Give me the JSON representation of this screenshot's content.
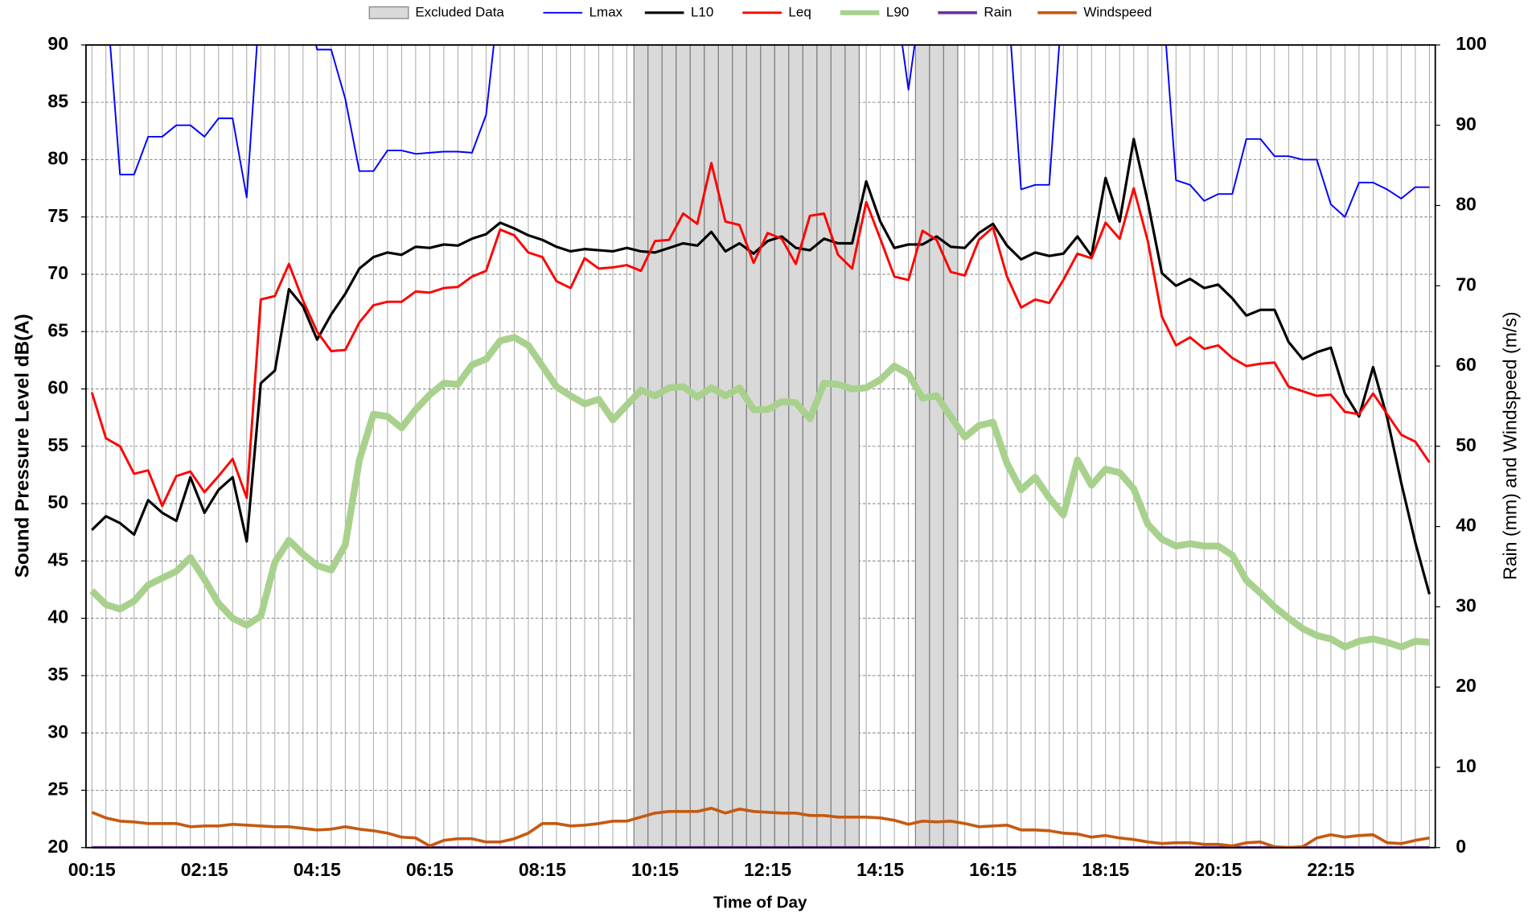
{
  "chart_data": {
    "type": "line",
    "x_label": "Time of Day",
    "y_label": "Sound Pressure Level dB(A)",
    "y2_label": "Rain (mm) and Windspeed (m/s)",
    "categories": [
      "00:15",
      null,
      null,
      null,
      null,
      null,
      null,
      null,
      "02:15",
      null,
      null,
      null,
      null,
      null,
      null,
      null,
      "04:15",
      null,
      null,
      null,
      null,
      null,
      null,
      null,
      "06:15",
      null,
      null,
      null,
      null,
      null,
      null,
      null,
      "08:15",
      null,
      null,
      null,
      null,
      null,
      null,
      null,
      "10:15",
      null,
      null,
      null,
      null,
      null,
      null,
      null,
      "12:15",
      null,
      null,
      null,
      null,
      null,
      null,
      null,
      "14:15",
      null,
      null,
      null,
      null,
      null,
      null,
      null,
      "16:15",
      null,
      null,
      null,
      null,
      null,
      null,
      null,
      "18:15",
      null,
      null,
      null,
      null,
      null,
      null,
      null,
      "20:15",
      null,
      null,
      null,
      null,
      null,
      null,
      null,
      "22:15",
      null,
      null,
      null,
      null,
      null,
      null,
      null
    ],
    "ylim": [
      20,
      90
    ],
    "yticks": [
      20,
      25,
      30,
      35,
      40,
      45,
      50,
      55,
      60,
      65,
      70,
      75,
      80,
      85,
      90
    ],
    "y2lim": [
      0,
      100
    ],
    "y2ticks": [
      0,
      10,
      20,
      30,
      40,
      50,
      60,
      70,
      80,
      90,
      100
    ],
    "grid": true,
    "legend": "top",
    "series": [
      {
        "name": "Excluded Data",
        "type": "bar",
        "color": "#d9d9d9",
        "values": [
          null,
          null,
          null,
          null,
          null,
          null,
          null,
          null,
          null,
          null,
          null,
          null,
          null,
          null,
          null,
          null,
          null,
          null,
          null,
          null,
          null,
          null,
          null,
          null,
          null,
          null,
          null,
          null,
          null,
          null,
          null,
          null,
          null,
          null,
          null,
          null,
          null,
          null,
          null,
          90,
          90,
          90,
          90,
          90,
          90,
          90,
          90,
          90,
          90,
          90,
          90,
          90,
          90,
          90,
          90,
          null,
          null,
          null,
          null,
          90,
          90,
          90,
          null,
          null,
          null,
          null,
          null,
          null,
          null,
          null,
          null,
          null,
          null,
          null,
          null,
          null,
          null,
          null,
          null,
          null,
          null,
          null,
          null,
          null,
          null,
          null,
          null,
          null,
          null,
          null,
          null,
          null,
          null,
          null,
          null,
          null
        ]
      },
      {
        "name": "Lmax",
        "type": "line",
        "color": "#0000ff",
        "values": [
          95,
          95,
          78.7,
          78.7,
          82,
          82,
          83,
          83,
          82,
          83.6,
          83.6,
          76.7,
          95,
          95,
          95,
          95,
          89.6,
          89.6,
          85.3,
          79,
          79,
          80.8,
          80.8,
          80.5,
          80.6,
          80.7,
          80.7,
          80.6,
          83.9,
          95,
          95,
          95,
          95,
          95,
          95,
          95,
          95,
          95,
          95,
          95,
          95,
          95,
          95,
          95,
          95,
          95,
          95,
          95,
          95,
          95,
          95,
          95,
          95,
          95,
          95,
          95,
          95,
          95,
          86.1,
          95,
          95,
          95,
          95,
          95,
          95,
          95,
          77.4,
          77.8,
          77.8,
          95,
          95,
          95,
          95,
          95,
          95,
          95,
          95,
          78.2,
          77.8,
          76.4,
          77,
          77,
          81.8,
          81.8,
          80.3,
          80.3,
          80,
          80,
          76.1,
          75,
          78,
          78,
          77.4,
          76.6,
          77.6,
          77.6
        ]
      },
      {
        "name": "L10",
        "type": "line",
        "color": "#000000",
        "values": [
          47.7,
          48.9,
          48.3,
          47.3,
          50.3,
          49.2,
          48.5,
          52.3,
          49.2,
          51.2,
          52.3,
          46.7,
          60.5,
          61.6,
          68.7,
          67.2,
          64.3,
          66.5,
          68.3,
          70.5,
          71.5,
          71.9,
          71.7,
          72.4,
          72.3,
          72.6,
          72.5,
          73.1,
          73.5,
          74.5,
          74.0,
          73.4,
          73.0,
          72.4,
          72.0,
          72.2,
          72.1,
          72.0,
          72.3,
          72.0,
          71.9,
          72.3,
          72.7,
          72.5,
          73.7,
          72.0,
          72.7,
          71.8,
          72.9,
          73.3,
          72.3,
          72.1,
          73.1,
          72.7,
          72.7,
          78.1,
          74.6,
          72.3,
          72.6,
          72.6,
          73.3,
          72.4,
          72.3,
          73.6,
          74.4,
          72.5,
          71.3,
          71.9,
          71.6,
          71.8,
          73.3,
          71.6,
          78.4,
          74.6,
          81.8,
          76.3,
          70.1,
          69.0,
          69.6,
          68.8,
          69.1,
          67.9,
          66.4,
          66.9,
          66.9,
          64.1,
          62.6,
          63.2,
          63.6,
          59.6,
          57.6,
          61.9,
          57.5,
          51.8,
          46.6,
          42.1
        ]
      },
      {
        "name": "Leq",
        "type": "line",
        "color": "#ff0000",
        "values": [
          59.7,
          55.7,
          55.0,
          52.6,
          52.9,
          49.8,
          52.4,
          52.8,
          51.0,
          52.4,
          53.9,
          50.5,
          67.8,
          68.1,
          70.9,
          67.7,
          65.0,
          63.3,
          63.4,
          65.8,
          67.3,
          67.6,
          67.6,
          68.5,
          68.4,
          68.8,
          68.9,
          69.8,
          70.3,
          73.9,
          73.4,
          71.9,
          71.5,
          69.4,
          68.8,
          71.4,
          70.5,
          70.6,
          70.8,
          70.3,
          72.9,
          73.0,
          75.3,
          74.4,
          79.7,
          74.6,
          74.3,
          71.0,
          73.6,
          73.1,
          70.9,
          75.1,
          75.3,
          71.7,
          70.5,
          76.3,
          73.1,
          69.8,
          69.5,
          73.8,
          73.0,
          70.2,
          69.9,
          73.0,
          74.1,
          69.8,
          67.1,
          67.8,
          67.5,
          69.5,
          71.8,
          71.4,
          74.5,
          73.1,
          77.5,
          72.9,
          66.3,
          63.8,
          64.5,
          63.5,
          63.8,
          62.7,
          62.0,
          62.2,
          62.3,
          60.2,
          59.8,
          59.4,
          59.5,
          58.0,
          57.8,
          59.6,
          57.8,
          56.0,
          55.4,
          53.6
        ]
      },
      {
        "name": "L90",
        "type": "line",
        "color": "#a9d18e",
        "values": [
          42.4,
          41.2,
          40.8,
          41.5,
          42.9,
          43.5,
          44.1,
          45.3,
          43.4,
          41.3,
          40.0,
          39.4,
          40.2,
          44.9,
          46.8,
          45.6,
          44.6,
          44.2,
          46.4,
          53.8,
          57.8,
          57.6,
          56.6,
          58.2,
          59.5,
          60.5,
          60.4,
          62.1,
          62.6,
          64.2,
          64.5,
          63.8,
          62.0,
          60.2,
          59.4,
          58.7,
          59.1,
          57.3,
          58.6,
          59.9,
          59.4,
          60.1,
          60.2,
          59.3,
          60.1,
          59.4,
          60.1,
          58.2,
          58.2,
          58.9,
          58.8,
          57.4,
          60.5,
          60.4,
          60.0,
          60.1,
          60.8,
          62.0,
          61.3,
          59.2,
          59.4,
          57.6,
          55.8,
          56.8,
          57.1,
          53.5,
          51.2,
          52.3,
          50.5,
          49.0,
          53.8,
          51.6,
          53.0,
          52.7,
          51.3,
          48.2,
          46.9,
          46.3,
          46.5,
          46.3,
          46.3,
          45.5,
          43.3,
          42.2,
          41.0,
          40.0,
          39.1,
          38.5,
          38.2,
          37.5,
          38.0,
          38.2,
          37.9,
          37.5,
          38.0,
          37.9
        ]
      },
      {
        "name": "Rain",
        "type": "line",
        "axis": "y2",
        "color": "#7030a0",
        "values": [
          0,
          0,
          0,
          0,
          0,
          0,
          0,
          0,
          0,
          0,
          0,
          0,
          0,
          0,
          0,
          0,
          0,
          0,
          0,
          0,
          0,
          0,
          0,
          0,
          0,
          0,
          0,
          0,
          0,
          0,
          0,
          0,
          0,
          0,
          0,
          0,
          0,
          0,
          0,
          0,
          0,
          0,
          0,
          0,
          0,
          0,
          0,
          0,
          0,
          0,
          0,
          0,
          0,
          0,
          0,
          0,
          0,
          0,
          0,
          0,
          0,
          0,
          0,
          0,
          0,
          0,
          0,
          0,
          0,
          0,
          0,
          0,
          0,
          0,
          0,
          0,
          0,
          0,
          0,
          0,
          0,
          0,
          0,
          0,
          0,
          0,
          0,
          0,
          0,
          0,
          0,
          0,
          0,
          0,
          0,
          0
        ]
      },
      {
        "name": "Windspeed",
        "type": "line",
        "axis": "y2",
        "color": "#c55a11",
        "values": [
          4.4,
          3.7,
          3.3,
          3.2,
          3.0,
          3.0,
          3.0,
          2.6,
          2.7,
          2.7,
          2.9,
          2.8,
          2.7,
          2.6,
          2.6,
          2.4,
          2.2,
          2.3,
          2.6,
          2.3,
          2.1,
          1.8,
          1.3,
          1.2,
          0.2,
          0.9,
          1.1,
          1.1,
          0.7,
          0.7,
          1.1,
          1.8,
          3.0,
          3.0,
          2.7,
          2.8,
          3.0,
          3.3,
          3.3,
          3.8,
          4.3,
          4.5,
          4.5,
          4.5,
          4.9,
          4.3,
          4.8,
          4.5,
          4.4,
          4.3,
          4.3,
          4.0,
          4.0,
          3.8,
          3.8,
          3.8,
          3.7,
          3.4,
          2.9,
          3.3,
          3.2,
          3.3,
          3.0,
          2.6,
          2.7,
          2.8,
          2.2,
          2.2,
          2.1,
          1.8,
          1.7,
          1.3,
          1.5,
          1.2,
          1.0,
          0.7,
          0.5,
          0.6,
          0.6,
          0.4,
          0.4,
          0.2,
          0.6,
          0.7,
          0.1,
          0,
          0.1,
          1.2,
          1.6,
          1.3,
          1.5,
          1.6,
          0.6,
          0.5,
          0.9,
          1.2
        ]
      }
    ]
  }
}
